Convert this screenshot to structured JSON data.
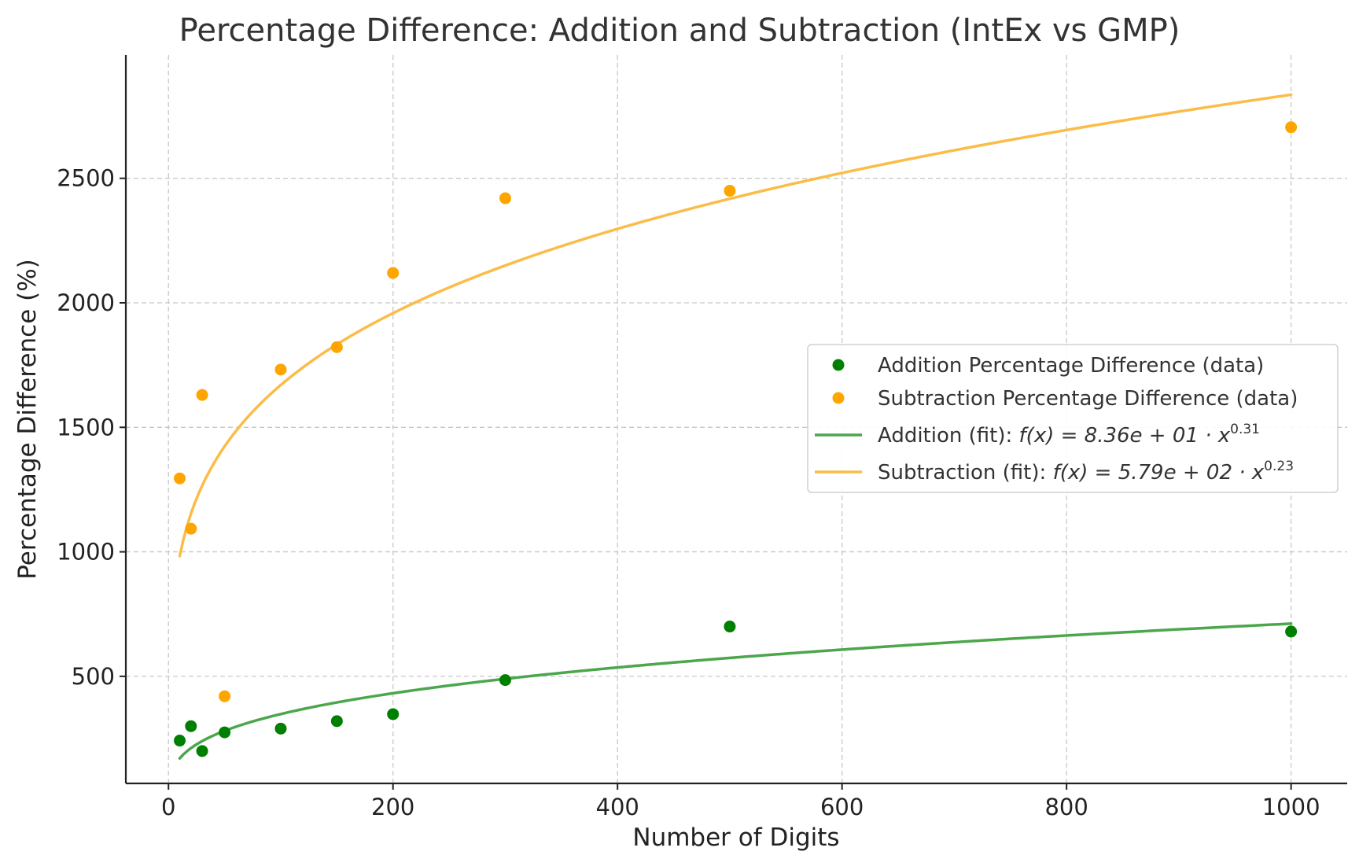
{
  "chart_data": {
    "type": "scatter",
    "title": "Percentage Difference: Addition and Subtraction (IntEx vs GMP)",
    "xlabel": "Number of Digits",
    "ylabel": "Percentage Difference (%)",
    "xlim": [
      -38,
      1050
    ],
    "ylim": [
      70,
      2995
    ],
    "xticks": [
      0,
      200,
      400,
      600,
      800,
      1000
    ],
    "yticks": [
      500,
      1000,
      1500,
      2000,
      2500
    ],
    "grid": true,
    "legend_position": "center-right",
    "series": [
      {
        "name": "Addition Percentage Difference (data)",
        "kind": "points",
        "color": "#008000",
        "x": [
          10,
          20,
          30,
          50,
          100,
          150,
          200,
          300,
          500,
          1000
        ],
        "y": [
          242,
          300,
          200,
          275,
          290,
          320,
          348,
          485,
          700,
          680
        ]
      },
      {
        "name": "Subtraction Percentage Difference (data)",
        "kind": "points",
        "color": "#FFA500",
        "x": [
          10,
          20,
          30,
          50,
          100,
          150,
          200,
          300,
          500,
          1000
        ],
        "y": [
          1295,
          1093,
          1630,
          420,
          1732,
          1822,
          2120,
          2420,
          2450,
          2705
        ]
      },
      {
        "name_prefix": "Addition (fit): ",
        "formula_text": "f(x) = 8.36e + 01 · x",
        "formula_exp": "0.31",
        "kind": "fit",
        "color": "#4CA64C",
        "coef": 83.6,
        "exponent": 0.31,
        "x_range": [
          10,
          1000
        ]
      },
      {
        "name_prefix": "Subtraction (fit): ",
        "formula_text": "f(x) = 5.79e + 02 · x",
        "formula_exp": "0.23",
        "kind": "fit",
        "color": "#FBBC48",
        "coef": 579,
        "exponent": 0.23,
        "x_range": [
          10,
          1000
        ]
      }
    ]
  }
}
